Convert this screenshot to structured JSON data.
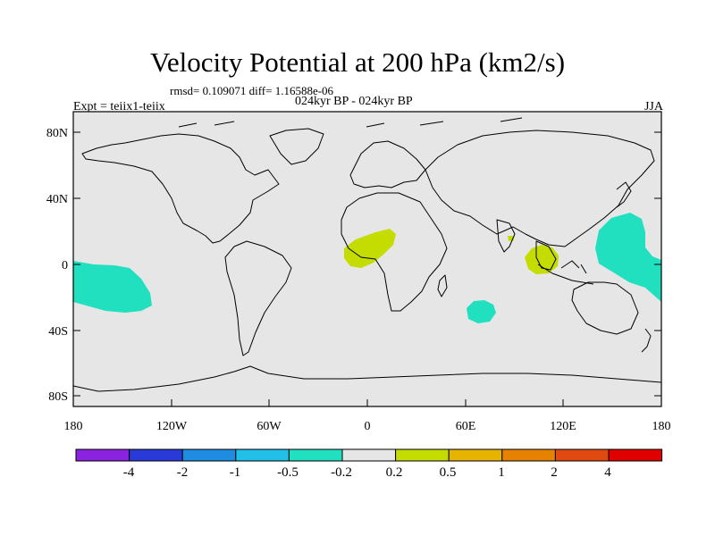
{
  "title": "Velocity Potential at 200 hPa (km2/s)",
  "stats": "rmsd= 0.109071 diff= 1.16588e-06",
  "experiment": "Expt = teiix1-teiix",
  "period": "024kyr BP - 024kyr BP",
  "season": "JJA",
  "y_ticks": [
    "80N",
    "40N",
    "0",
    "40S",
    "80S"
  ],
  "x_ticks": [
    "180",
    "120W",
    "60W",
    "0",
    "60E",
    "120E",
    "180"
  ],
  "colorbar": {
    "colors": [
      "#8a22e0",
      "#2a3ad8",
      "#1e8ce0",
      "#20c0e8",
      "#20e0c0",
      "#e6e6e6",
      "#c4dc00",
      "#e6b400",
      "#e68200",
      "#e04a10",
      "#e00000"
    ],
    "labels": [
      "-4",
      "-2",
      "-1",
      "-0.5",
      "-0.2",
      "0.2",
      "0.5",
      "1",
      "2",
      "4"
    ]
  },
  "colors": {
    "background": "#e6e6e6",
    "negative_shade": "#20e0c0",
    "positive_shade": "#c4dc00"
  }
}
